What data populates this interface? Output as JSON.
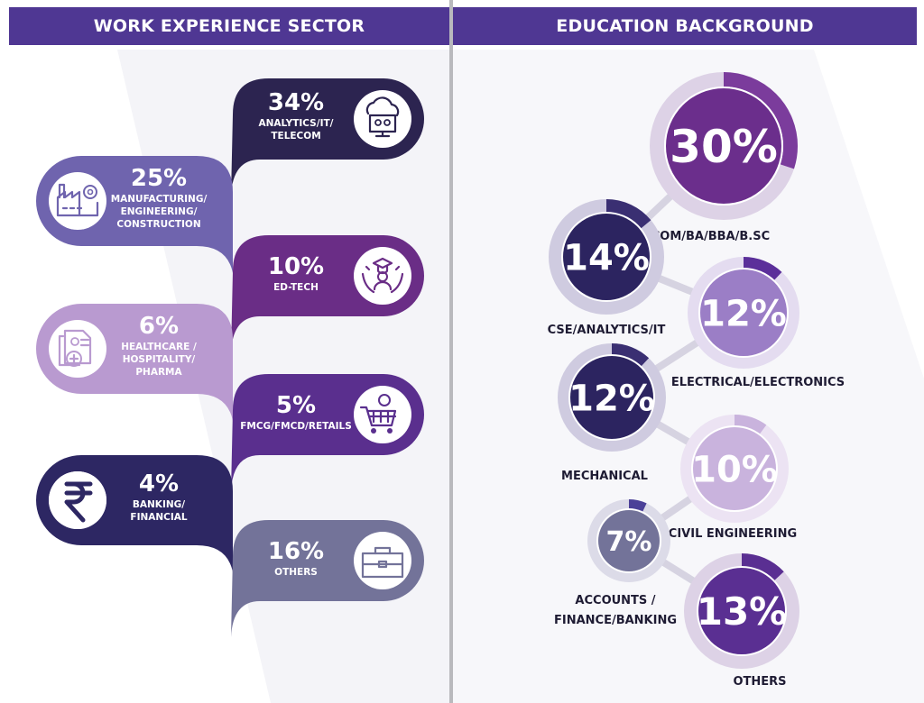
{
  "work": {
    "title": "WORK EXPERIENCE SECTOR",
    "items": [
      {
        "percent": "34%",
        "label_lines": [
          "ANALYTICS/IT/",
          "TELECOM"
        ],
        "icon": "cloud-monitor-icon",
        "color": "#2c2450"
      },
      {
        "percent": "25%",
        "label_lines": [
          "MANUFACTURING/",
          "ENGINEERING/",
          "CONSTRUCTION"
        ],
        "icon": "factory-icon",
        "color": "#6f64ae"
      },
      {
        "percent": "10%",
        "label_lines": [
          "ED-TECH"
        ],
        "icon": "graduate-hands-icon",
        "color": "#6a2d86"
      },
      {
        "percent": "6%",
        "label_lines": [
          "HEALTHCARE /",
          "HOSPITALITY/",
          "PHARMA"
        ],
        "icon": "medical-record-icon",
        "color": "#b99ad0"
      },
      {
        "percent": "5%",
        "label_lines": [
          "FMCG/FMCD/RETAILS"
        ],
        "icon": "shopping-cart-icon",
        "color": "#5a2f8e"
      },
      {
        "percent": "4%",
        "label_lines": [
          "BANKING/",
          "FINANCIAL"
        ],
        "icon": "rupee-icon",
        "color": "#2d2763"
      },
      {
        "percent": "16%",
        "label_lines": [
          "OTHERS"
        ],
        "icon": "briefcase-icon",
        "color": "#737399"
      }
    ]
  },
  "education": {
    "title": "EDUCATION BACKGROUND",
    "items": [
      {
        "percent": "30%",
        "label": "B.COM/BA/BBA/B.SC",
        "fill": "#6b2e8c",
        "ring_bg": "#ddd2e6",
        "ring_fg": "#7b3c9c"
      },
      {
        "percent": "14%",
        "label": "CSE/ANALYTICS/IT",
        "fill": "#2c2460",
        "ring_bg": "#cfcbe0",
        "ring_fg": "#3a2f72"
      },
      {
        "percent": "12%",
        "label": "ELECTRICAL/ELECTRONICS",
        "fill": "#9b7ec6",
        "ring_bg": "#e4dcf0",
        "ring_fg": "#5b2f9a"
      },
      {
        "percent": "12%",
        "label": "MECHANICAL",
        "fill": "#2c2460",
        "ring_bg": "#cfcbe0",
        "ring_fg": "#3a2f72"
      },
      {
        "percent": "10%",
        "label": "CIVIL ENGINEERING",
        "fill": "#c9b3dd",
        "ring_bg": "#ece3f3",
        "ring_fg": "#c9b3dd"
      },
      {
        "percent": "7%",
        "label_lines": [
          "ACCOUNTS /",
          "FINANCE/BANKING"
        ],
        "fill": "#737399",
        "ring_bg": "#dcdbe8",
        "ring_fg": "#4b4098"
      },
      {
        "percent": "13%",
        "label": "OTHERS",
        "fill": "#5a2f92",
        "ring_bg": "#ddd2e6",
        "ring_fg": "#5a2f92"
      }
    ]
  },
  "chart_data": [
    {
      "type": "bar",
      "title": "WORK EXPERIENCE SECTOR",
      "categories": [
        "ANALYTICS/IT/TELECOM",
        "MANUFACTURING/ENGINEERING/CONSTRUCTION",
        "ED-TECH",
        "HEALTHCARE / HOSPITALITY/PHARMA",
        "FMCG/FMCD/RETAILS",
        "BANKING/FINANCIAL",
        "OTHERS"
      ],
      "values": [
        34,
        25,
        10,
        6,
        5,
        4,
        16
      ]
    },
    {
      "type": "pie",
      "title": "EDUCATION BACKGROUND",
      "categories": [
        "B.COM/BA/BBA/B.SC",
        "CSE/ANALYTICS/IT",
        "ELECTRICAL/ELECTRONICS",
        "MECHANICAL",
        "CIVIL ENGINEERING",
        "ACCOUNTS / FINANCE/BANKING",
        "OTHERS"
      ],
      "values": [
        30,
        14,
        12,
        12,
        10,
        7,
        13
      ]
    }
  ]
}
